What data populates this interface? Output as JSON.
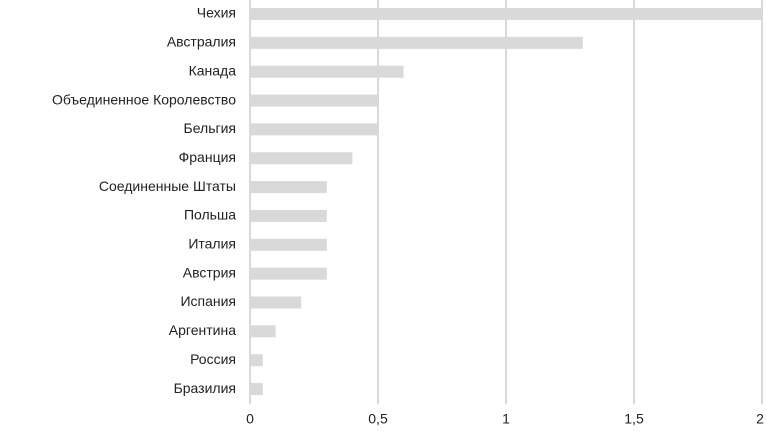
{
  "chart_data": {
    "type": "hbar",
    "categories": [
      "Чехия",
      "Австралия",
      "Канада",
      "Объединенное Королевство",
      "Бельгия",
      "Франция",
      "Соединенные Штаты",
      "Польша",
      "Италия",
      "Австрия",
      "Испания",
      "Аргентина",
      "Россия",
      "Бразилия"
    ],
    "values": [
      2.0,
      1.3,
      0.6,
      0.5,
      0.5,
      0.4,
      0.3,
      0.3,
      0.3,
      0.3,
      0.2,
      0.1,
      0.05,
      0.05
    ],
    "color": "#d9d9d9",
    "xlim": [
      0,
      2
    ],
    "xticks": [
      0,
      {
        "value": 0.5,
        "label": "0,5"
      },
      1,
      {
        "value": 1.5,
        "label": "1,5"
      },
      2
    ],
    "grid": true
  }
}
